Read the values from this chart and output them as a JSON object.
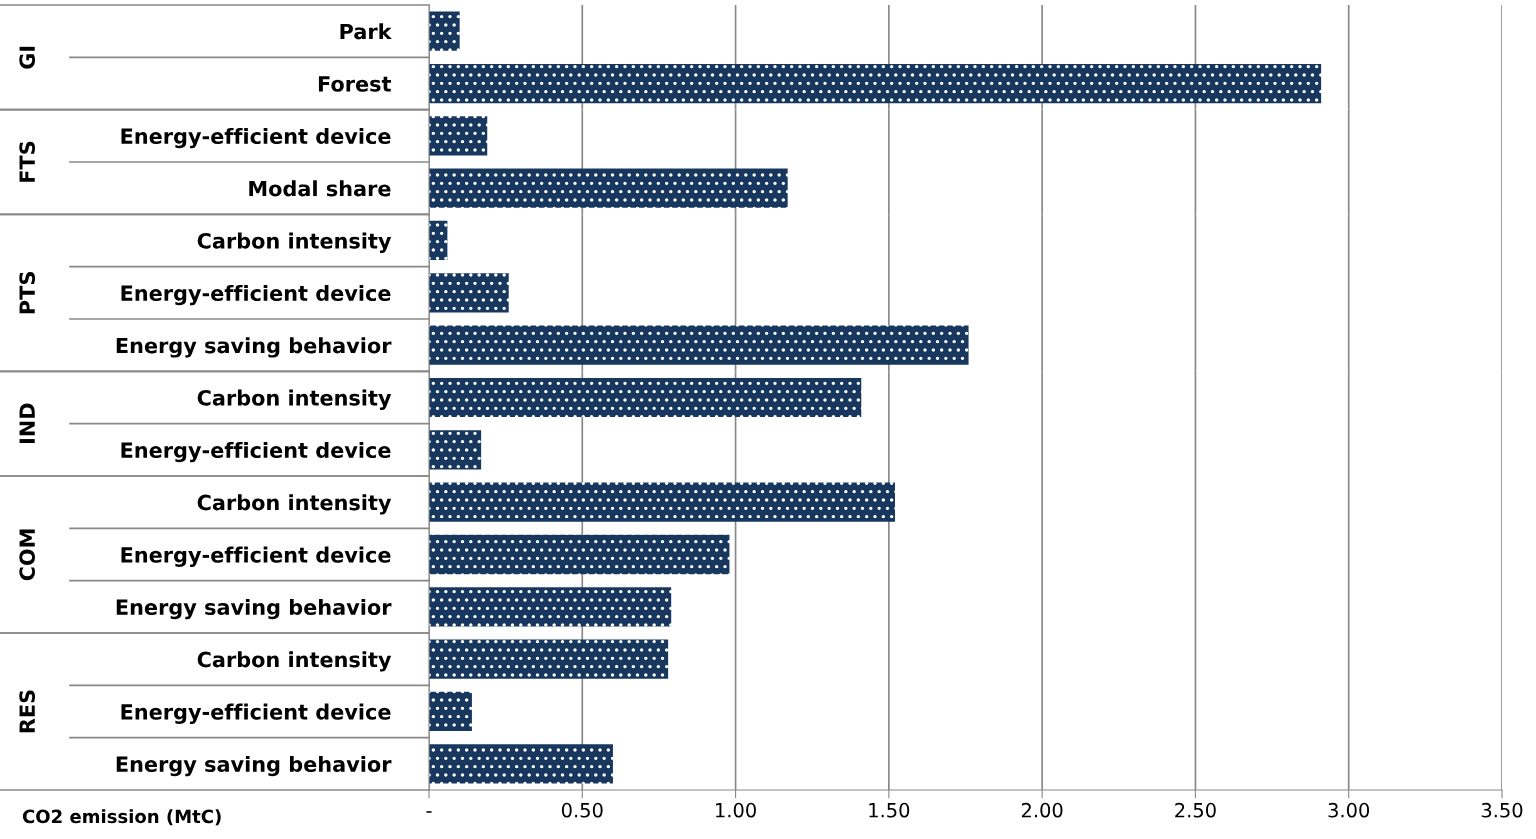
{
  "chart_data": [
    {
      "type": "bar",
      "orientation": "horizontal",
      "ylabel": "GI",
      "categories": [
        "Park",
        "Forest"
      ],
      "values": [
        0.1,
        2.91
      ],
      "color": "#17375e",
      "xlim": [
        0,
        3.5
      ],
      "xticks": [
        {
          "value": 0,
          "label": null
        },
        {
          "value": 0.5,
          "label": null
        },
        {
          "value": 1.0,
          "label": null
        },
        {
          "value": 1.5,
          "label": null
        },
        {
          "value": 2.0,
          "label": null
        },
        {
          "value": 2.5,
          "label": null
        },
        {
          "value": 3.0,
          "label": null
        },
        {
          "value": 3.5,
          "label": null
        }
      ],
      "grid": "x",
      "tick_labels": "y"
    },
    {
      "type": "bar",
      "orientation": "horizontal",
      "ylabel": "FTS",
      "categories": [
        "Energy-efficient device",
        "Modal share"
      ],
      "values": [
        0.19,
        1.17
      ],
      "color": "#17375e",
      "xlim": [
        0,
        3.5
      ],
      "xticks": [
        {
          "value": 0,
          "label": null
        },
        {
          "value": 0.5,
          "label": null
        },
        {
          "value": 1.0,
          "label": null
        },
        {
          "value": 1.5,
          "label": null
        },
        {
          "value": 2.0,
          "label": null
        },
        {
          "value": 2.5,
          "label": null
        },
        {
          "value": 3.0,
          "label": null
        },
        {
          "value": 3.5,
          "label": null
        }
      ],
      "grid": "x",
      "tick_labels": "y"
    },
    {
      "type": "bar",
      "orientation": "horizontal",
      "ylabel": "PTS",
      "categories": [
        "Carbon intensity",
        "Energy-efficient device",
        "Energy saving behavior"
      ],
      "values": [
        0.06,
        0.26,
        1.76
      ],
      "color": "#17375e",
      "xlim": [
        0,
        3.5
      ],
      "xticks": [
        {
          "value": 0,
          "label": null
        },
        {
          "value": 0.5,
          "label": null
        },
        {
          "value": 1.0,
          "label": null
        },
        {
          "value": 1.5,
          "label": null
        },
        {
          "value": 2.0,
          "label": null
        },
        {
          "value": 2.5,
          "label": null
        },
        {
          "value": 3.0,
          "label": null
        },
        {
          "value": 3.5,
          "label": null
        }
      ],
      "grid": "x",
      "tick_labels": "y"
    },
    {
      "type": "bar",
      "orientation": "horizontal",
      "ylabel": "IND",
      "categories": [
        "Carbon intensity",
        "Energy-efficient device"
      ],
      "values": [
        1.41,
        0.17
      ],
      "color": "#17375e",
      "xlim": [
        0,
        3.5
      ],
      "xticks": [
        {
          "value": 0,
          "label": null
        },
        {
          "value": 0.5,
          "label": null
        },
        {
          "value": 1.0,
          "label": null
        },
        {
          "value": 1.5,
          "label": null
        },
        {
          "value": 2.0,
          "label": null
        },
        {
          "value": 2.5,
          "label": null
        },
        {
          "value": 3.0,
          "label": null
        },
        {
          "value": 3.5,
          "label": null
        }
      ],
      "grid": "x",
      "tick_labels": "y"
    },
    {
      "type": "bar",
      "orientation": "horizontal",
      "ylabel": "COM",
      "categories": [
        "Carbon intensity",
        "Energy-efficient device",
        "Energy saving behavior"
      ],
      "values": [
        1.52,
        0.98,
        0.79
      ],
      "color": "#17375e",
      "xlim": [
        0,
        3.5
      ],
      "xticks": [
        {
          "value": 0,
          "label": null
        },
        {
          "value": 0.5,
          "label": null
        },
        {
          "value": 1.0,
          "label": null
        },
        {
          "value": 1.5,
          "label": null
        },
        {
          "value": 2.0,
          "label": null
        },
        {
          "value": 2.5,
          "label": null
        },
        {
          "value": 3.0,
          "label": null
        },
        {
          "value": 3.5,
          "label": null
        }
      ],
      "grid": "x",
      "tick_labels": "y"
    },
    {
      "type": "bar",
      "orientation": "horizontal",
      "ylabel": "RES",
      "xlabel": "CO2 emission (MtC)",
      "categories": [
        "Carbon intensity",
        "Energy-efficient device",
        "Energy saving behavior"
      ],
      "values": [
        0.78,
        0.14,
        0.6
      ],
      "color": "#17375e",
      "xlim": [
        0,
        3.5
      ],
      "xticks": [
        {
          "value": 0,
          "label": "-"
        },
        {
          "value": 0.5,
          "label": "0.50"
        },
        {
          "value": 1.0,
          "label": "1.00"
        },
        {
          "value": 1.5,
          "label": "1.50"
        },
        {
          "value": 2.0,
          "label": "2.00"
        },
        {
          "value": 2.5,
          "label": "2.50"
        },
        {
          "value": 3.0,
          "label": "3.00"
        },
        {
          "value": 3.5,
          "label": "3.50"
        }
      ],
      "grid": "x"
    }
  ]
}
